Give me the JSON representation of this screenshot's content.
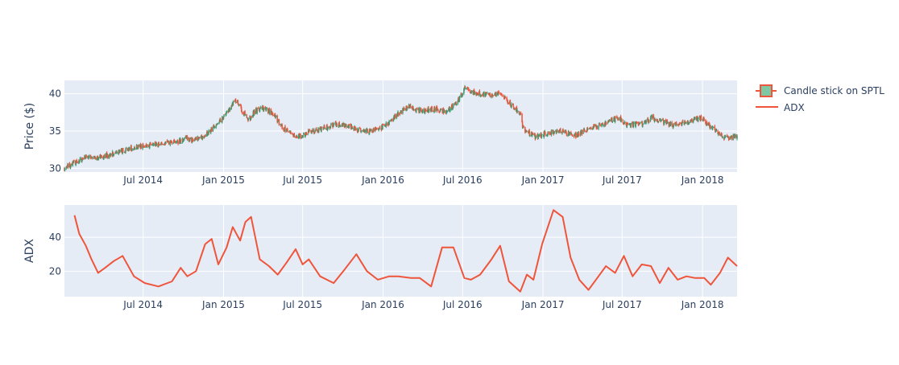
{
  "chart_data": [
    {
      "type": "candlestick",
      "panel": "top",
      "series_name": "Candle stick on SPTL",
      "ylabel": "Price ($)",
      "ylim": [
        29.5,
        41.8
      ],
      "y_ticks": [
        30,
        35,
        40
      ],
      "xlim": [
        "2014-01-02",
        "2018-03-21"
      ],
      "x_ticks": [
        {
          "date": "2014-07-01",
          "label": "Jul 2014"
        },
        {
          "date": "2015-01-01",
          "label": "Jan 2015"
        },
        {
          "date": "2015-07-01",
          "label": "Jul 2015"
        },
        {
          "date": "2016-01-01",
          "label": "Jan 2016"
        },
        {
          "date": "2016-07-01",
          "label": "Jul 2016"
        },
        {
          "date": "2017-01-01",
          "label": "Jan 2017"
        },
        {
          "date": "2017-07-01",
          "label": "Jul 2017"
        },
        {
          "date": "2018-01-01",
          "label": "Jan 2018"
        }
      ],
      "increasing_color": "#3d9970",
      "decreasing_color": "#ef553b",
      "close_curve": [
        [
          "2014-01-02",
          30.0
        ],
        [
          "2014-02-01",
          31.0
        ],
        [
          "2014-02-20",
          31.5
        ],
        [
          "2014-03-15",
          31.3
        ],
        [
          "2014-04-15",
          31.8
        ],
        [
          "2014-05-15",
          32.4
        ],
        [
          "2014-06-15",
          32.8
        ],
        [
          "2014-07-15",
          33.1
        ],
        [
          "2014-08-15",
          33.2
        ],
        [
          "2014-09-15",
          33.5
        ],
        [
          "2014-10-10",
          34.0
        ],
        [
          "2014-10-25",
          33.7
        ],
        [
          "2014-11-15",
          34.2
        ],
        [
          "2014-12-01",
          35.0
        ],
        [
          "2014-12-20",
          36.0
        ],
        [
          "2015-01-10",
          37.6
        ],
        [
          "2015-01-30",
          39.2
        ],
        [
          "2015-02-12",
          37.8
        ],
        [
          "2015-02-28",
          36.6
        ],
        [
          "2015-03-15",
          37.8
        ],
        [
          "2015-03-30",
          38.0
        ],
        [
          "2015-04-15",
          37.7
        ],
        [
          "2015-04-30",
          36.9
        ],
        [
          "2015-05-15",
          35.5
        ],
        [
          "2015-06-05",
          34.6
        ],
        [
          "2015-06-20",
          34.2
        ],
        [
          "2015-07-05",
          34.6
        ],
        [
          "2015-07-25",
          35.0
        ],
        [
          "2015-08-15",
          35.4
        ],
        [
          "2015-09-05",
          35.7
        ],
        [
          "2015-09-25",
          35.9
        ],
        [
          "2015-10-15",
          35.6
        ],
        [
          "2015-11-05",
          35.1
        ],
        [
          "2015-11-25",
          35.0
        ],
        [
          "2015-12-15",
          35.2
        ],
        [
          "2016-01-05",
          35.6
        ],
        [
          "2016-01-25",
          36.8
        ],
        [
          "2016-02-15",
          37.8
        ],
        [
          "2016-03-01",
          38.3
        ],
        [
          "2016-03-20",
          37.8
        ],
        [
          "2016-04-10",
          37.8
        ],
        [
          "2016-04-30",
          38.0
        ],
        [
          "2016-05-20",
          37.6
        ],
        [
          "2016-06-10",
          38.4
        ],
        [
          "2016-06-30",
          39.8
        ],
        [
          "2016-07-08",
          41.0
        ],
        [
          "2016-07-20",
          40.2
        ],
        [
          "2016-08-15",
          40.0
        ],
        [
          "2016-09-10",
          39.9
        ],
        [
          "2016-09-25",
          40.1
        ],
        [
          "2016-10-10",
          39.2
        ],
        [
          "2016-10-30",
          38.0
        ],
        [
          "2016-11-10",
          37.4
        ],
        [
          "2016-11-15",
          35.5
        ],
        [
          "2016-11-30",
          34.7
        ],
        [
          "2016-12-15",
          34.2
        ],
        [
          "2017-01-05",
          34.6
        ],
        [
          "2017-02-05",
          35.0
        ],
        [
          "2017-03-05",
          34.6
        ],
        [
          "2017-03-15",
          34.3
        ],
        [
          "2017-04-05",
          35.0
        ],
        [
          "2017-04-25",
          35.6
        ],
        [
          "2017-05-15",
          35.8
        ],
        [
          "2017-06-10",
          36.5
        ],
        [
          "2017-06-25",
          36.8
        ],
        [
          "2017-07-10",
          35.8
        ],
        [
          "2017-08-15",
          36.0
        ],
        [
          "2017-09-08",
          36.8
        ],
        [
          "2017-09-30",
          36.3
        ],
        [
          "2017-10-25",
          35.8
        ],
        [
          "2017-11-20",
          36.2
        ],
        [
          "2017-12-10",
          36.5
        ],
        [
          "2017-12-30",
          36.7
        ],
        [
          "2018-01-20",
          35.6
        ],
        [
          "2018-02-10",
          34.6
        ],
        [
          "2018-02-25",
          34.0
        ],
        [
          "2018-03-21",
          34.3
        ]
      ]
    },
    {
      "type": "line",
      "panel": "bottom",
      "ylabel": "ADX",
      "ylim": [
        5,
        59
      ],
      "y_ticks": [
        20,
        40
      ],
      "xlim": [
        "2014-01-02",
        "2018-03-21"
      ],
      "line_color": "#ef553b",
      "x": [
        "2014-01-25",
        "2014-02-05",
        "2014-02-20",
        "2014-03-05",
        "2014-03-20",
        "2014-04-05",
        "2014-04-25",
        "2014-05-15",
        "2014-06-10",
        "2014-07-05",
        "2014-08-05",
        "2014-09-05",
        "2014-09-25",
        "2014-10-10",
        "2014-10-30",
        "2014-11-20",
        "2014-12-05",
        "2014-12-20",
        "2015-01-08",
        "2015-01-22",
        "2015-02-08",
        "2015-02-20",
        "2015-03-05",
        "2015-03-25",
        "2015-04-15",
        "2015-05-05",
        "2015-05-25",
        "2015-06-15",
        "2015-07-01",
        "2015-07-15",
        "2015-08-10",
        "2015-09-10",
        "2015-10-05",
        "2015-11-01",
        "2015-11-25",
        "2015-12-20",
        "2016-01-15",
        "2016-02-05",
        "2016-03-05",
        "2016-03-25",
        "2016-04-20",
        "2016-05-15",
        "2016-06-10",
        "2016-07-05",
        "2016-07-20",
        "2016-08-10",
        "2016-09-05",
        "2016-09-25",
        "2016-10-15",
        "2016-11-10",
        "2016-11-25",
        "2016-12-10",
        "2016-12-30",
        "2017-01-25",
        "2017-02-15",
        "2017-03-05",
        "2017-03-25",
        "2017-04-15",
        "2017-05-05",
        "2017-05-25",
        "2017-06-15",
        "2017-07-05",
        "2017-07-25",
        "2017-08-15",
        "2017-09-05",
        "2017-09-25",
        "2017-10-15",
        "2017-11-05",
        "2017-11-25",
        "2017-12-15",
        "2018-01-05",
        "2018-01-20",
        "2018-02-10",
        "2018-02-28",
        "2018-03-21"
      ],
      "y": [
        53,
        42,
        35,
        27,
        19,
        22,
        26,
        29,
        17,
        13,
        11,
        14,
        22,
        17,
        20,
        36,
        39,
        24,
        34,
        46,
        38,
        49,
        52,
        27,
        23,
        18,
        25,
        33,
        24,
        27,
        17,
        13,
        21,
        30,
        20,
        15,
        17,
        17,
        16,
        16,
        11,
        34,
        34,
        16,
        15,
        18,
        27,
        35,
        14,
        8,
        18,
        15,
        36,
        56,
        52,
        28,
        15,
        9,
        16,
        23,
        19,
        29,
        17,
        24,
        23,
        13,
        22,
        15,
        17,
        16,
        16,
        12,
        19,
        28,
        23
      ]
    }
  ],
  "legend": {
    "items": [
      {
        "label": "Candle stick on SPTL",
        "kind": "candle",
        "fill": "#7fc8a4",
        "stroke": "#ef553b"
      },
      {
        "label": "ADX",
        "kind": "line",
        "stroke": "#ef553b"
      }
    ]
  },
  "colors": {
    "plot_bg": "#e5ecf6",
    "grid": "#ffffff",
    "text": "#2a3f5f"
  }
}
